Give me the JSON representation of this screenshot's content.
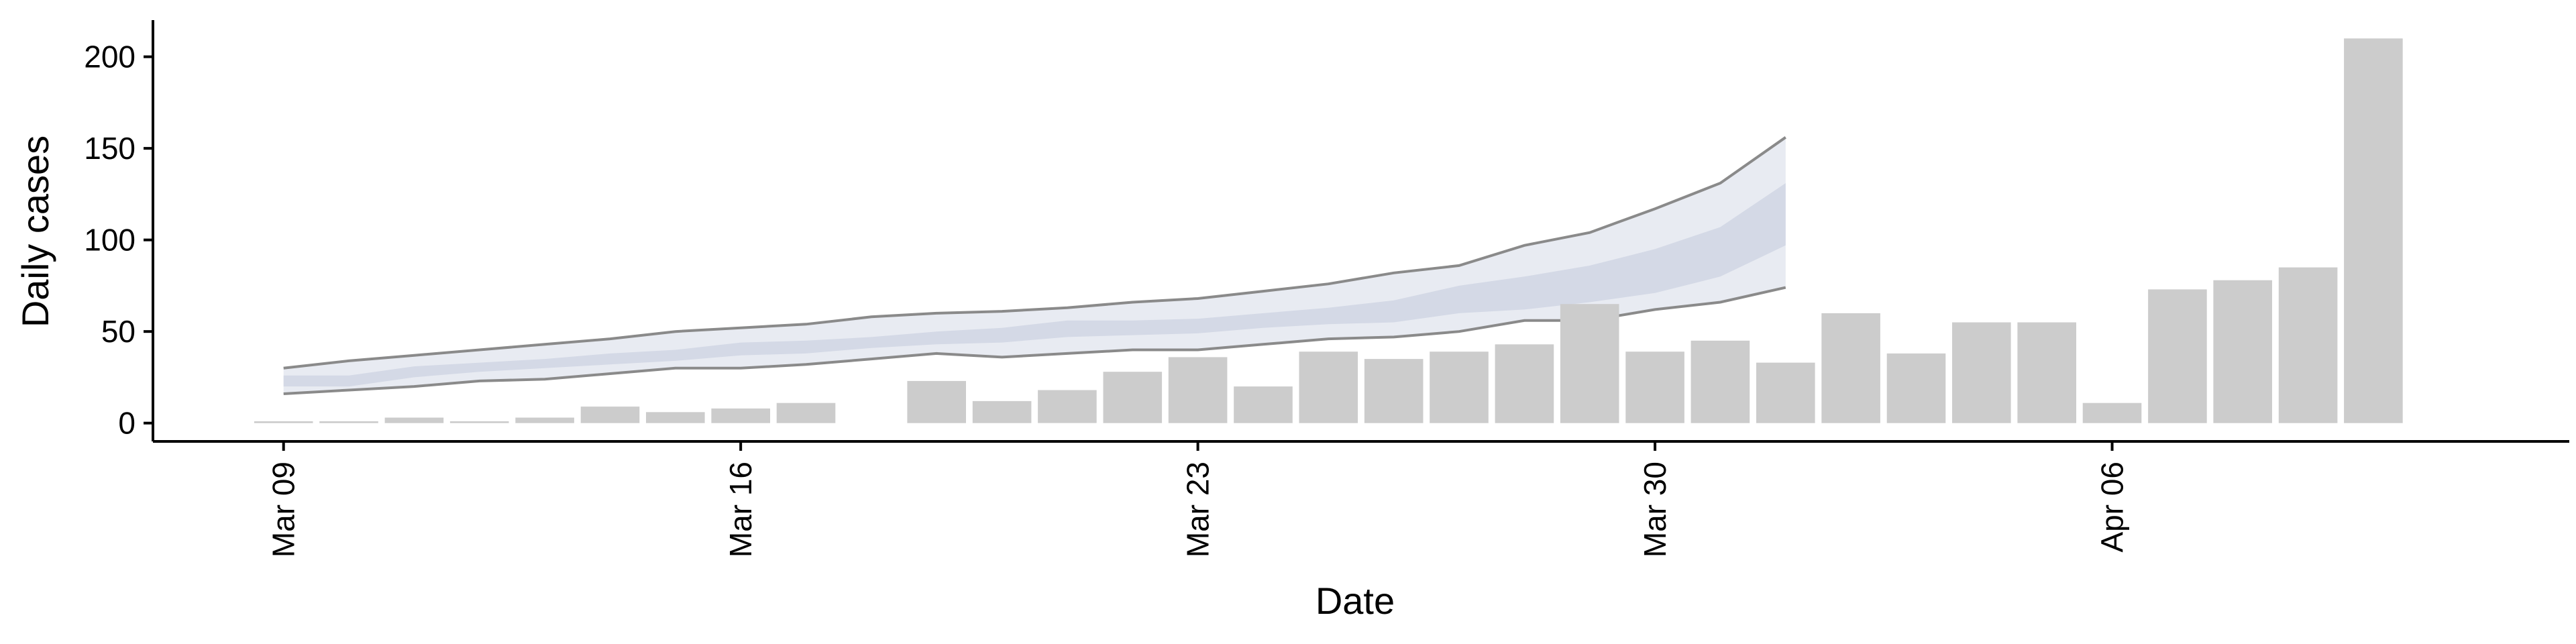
{
  "chart_data": {
    "type": "bar",
    "title": "",
    "xlabel": "Date",
    "ylabel": "Daily cases",
    "ylim": [
      -10,
      220
    ],
    "yticks": [
      0,
      50,
      100,
      150,
      200
    ],
    "xticks": [
      {
        "date": "2020-03-09",
        "label": "Mar 09"
      },
      {
        "date": "2020-03-16",
        "label": "Mar 16"
      },
      {
        "date": "2020-03-23",
        "label": "Mar 23"
      },
      {
        "date": "2020-03-30",
        "label": "Mar 30"
      },
      {
        "date": "2020-04-06",
        "label": "Apr 06"
      }
    ],
    "xlim": [
      "2020-03-07",
      "2020-04-13"
    ],
    "grid": false,
    "legend": "none",
    "bars": {
      "name": "",
      "color": "#cccccc",
      "points": [
        {
          "date": "2020-03-09",
          "value": 1
        },
        {
          "date": "2020-03-10",
          "value": 1
        },
        {
          "date": "2020-03-11",
          "value": 3
        },
        {
          "date": "2020-03-12",
          "value": 1
        },
        {
          "date": "2020-03-13",
          "value": 3
        },
        {
          "date": "2020-03-14",
          "value": 9
        },
        {
          "date": "2020-03-15",
          "value": 6
        },
        {
          "date": "2020-03-16",
          "value": 8
        },
        {
          "date": "2020-03-17",
          "value": 11
        },
        {
          "date": "2020-03-19",
          "value": 23
        },
        {
          "date": "2020-03-20",
          "value": 12
        },
        {
          "date": "2020-03-21",
          "value": 18
        },
        {
          "date": "2020-03-22",
          "value": 28
        },
        {
          "date": "2020-03-23",
          "value": 36
        },
        {
          "date": "2020-03-24",
          "value": 20
        },
        {
          "date": "2020-03-25",
          "value": 39
        },
        {
          "date": "2020-03-26",
          "value": 35
        },
        {
          "date": "2020-03-27",
          "value": 39
        },
        {
          "date": "2020-03-28",
          "value": 43
        },
        {
          "date": "2020-03-29",
          "value": 65
        },
        {
          "date": "2020-03-30",
          "value": 39
        },
        {
          "date": "2020-03-31",
          "value": 45
        },
        {
          "date": "2020-04-01",
          "value": 33
        },
        {
          "date": "2020-04-02",
          "value": 60
        },
        {
          "date": "2020-04-03",
          "value": 38
        },
        {
          "date": "2020-04-04",
          "value": 55
        },
        {
          "date": "2020-04-05",
          "value": 55
        },
        {
          "date": "2020-04-06",
          "value": 11
        },
        {
          "date": "2020-04-07",
          "value": 73
        },
        {
          "date": "2020-04-08",
          "value": 78
        },
        {
          "date": "2020-04-09",
          "value": 85
        },
        {
          "date": "2020-04-10",
          "value": 210
        }
      ]
    },
    "estimate": {
      "name": "",
      "dates": [
        "2020-03-09",
        "2020-03-10",
        "2020-03-11",
        "2020-03-12",
        "2020-03-13",
        "2020-03-14",
        "2020-03-15",
        "2020-03-16",
        "2020-03-17",
        "2020-03-18",
        "2020-03-19",
        "2020-03-20",
        "2020-03-21",
        "2020-03-22",
        "2020-03-23",
        "2020-03-24",
        "2020-03-25",
        "2020-03-26",
        "2020-03-27",
        "2020-03-28",
        "2020-03-29",
        "2020-03-30",
        "2020-03-31",
        "2020-04-01"
      ],
      "lower90": [
        16,
        18,
        20,
        23,
        24,
        27,
        30,
        30,
        32,
        35,
        38,
        36,
        38,
        40,
        40,
        43,
        46,
        47,
        50,
        56,
        56,
        62,
        66,
        74
      ],
      "upper90": [
        30,
        34,
        37,
        40,
        43,
        46,
        50,
        52,
        54,
        58,
        60,
        61,
        63,
        66,
        68,
        72,
        76,
        82,
        86,
        97,
        104,
        117,
        131,
        156
      ],
      "lower50": [
        20,
        20,
        25,
        28,
        30,
        32,
        34,
        37,
        38,
        41,
        43,
        44,
        47,
        48,
        49,
        52,
        54,
        55,
        60,
        62,
        66,
        71,
        80,
        97
      ],
      "upper50": [
        26,
        26,
        31,
        33,
        35,
        38,
        40,
        44,
        45,
        47,
        50,
        52,
        56,
        56,
        57,
        60,
        63,
        67,
        75,
        80,
        86,
        95,
        107,
        131
      ],
      "color_inner": "#d4d9e6",
      "color_outer": "#e8ebf2",
      "line_color": "#8a8a8a"
    }
  }
}
